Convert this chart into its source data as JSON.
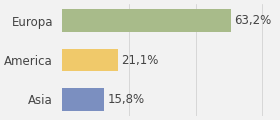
{
  "categories": [
    "Asia",
    "America",
    "Europa"
  ],
  "values": [
    15.8,
    21.1,
    63.2
  ],
  "labels": [
    "15,8%",
    "21,1%",
    "63,2%"
  ],
  "bar_colors": [
    "#7b8fc0",
    "#f0c96a",
    "#a8bb8a"
  ],
  "background_color": "#f2f2f2",
  "xlim": [
    0,
    80
  ],
  "bar_height": 0.58,
  "label_fontsize": 8.5,
  "tick_fontsize": 8.5
}
